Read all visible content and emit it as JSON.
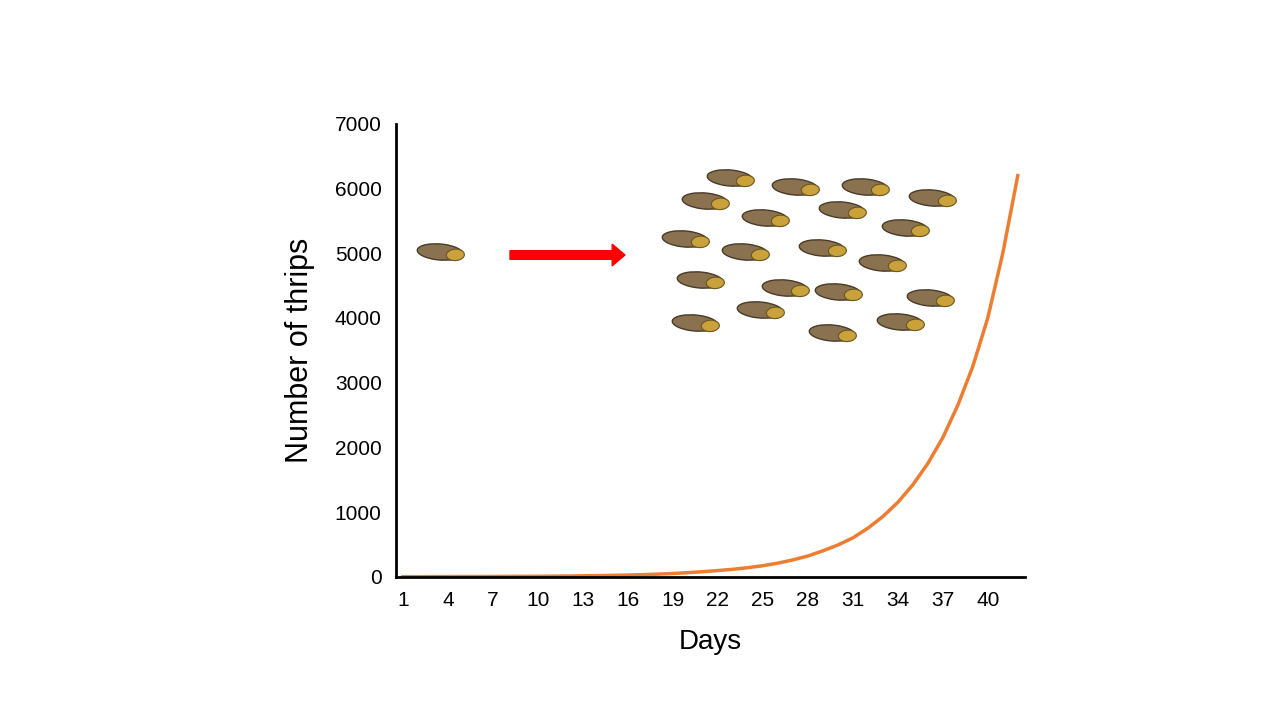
{
  "chart_data": {
    "type": "line",
    "x_label": "Days",
    "y_label": "Number of thrips",
    "x": [
      1,
      2,
      3,
      4,
      5,
      6,
      7,
      8,
      9,
      10,
      11,
      12,
      13,
      14,
      15,
      16,
      17,
      18,
      19,
      20,
      21,
      22,
      23,
      24,
      25,
      26,
      27,
      28,
      29,
      30,
      31,
      32,
      33,
      34,
      35,
      36,
      37,
      38,
      39,
      40,
      41,
      42
    ],
    "values": [
      1,
      1,
      2,
      2,
      3,
      3,
      4,
      5,
      6,
      7,
      9,
      11,
      14,
      17,
      21,
      26,
      32,
      40,
      50,
      63,
      78,
      95,
      115,
      140,
      170,
      210,
      260,
      320,
      400,
      490,
      600,
      750,
      930,
      1150,
      1420,
      1750,
      2150,
      2650,
      3250,
      4000,
      5000,
      6200
    ],
    "color": "#ed7d31",
    "xlim": [
      0.5,
      42.5
    ],
    "xticks": [
      1,
      4,
      7,
      10,
      13,
      16,
      19,
      22,
      25,
      28,
      31,
      34,
      37,
      40
    ],
    "ylim": [
      0,
      7000
    ],
    "yticks": [
      0,
      1000,
      2000,
      3000,
      4000,
      5000,
      6000,
      7000
    ],
    "grid": false
  }
}
